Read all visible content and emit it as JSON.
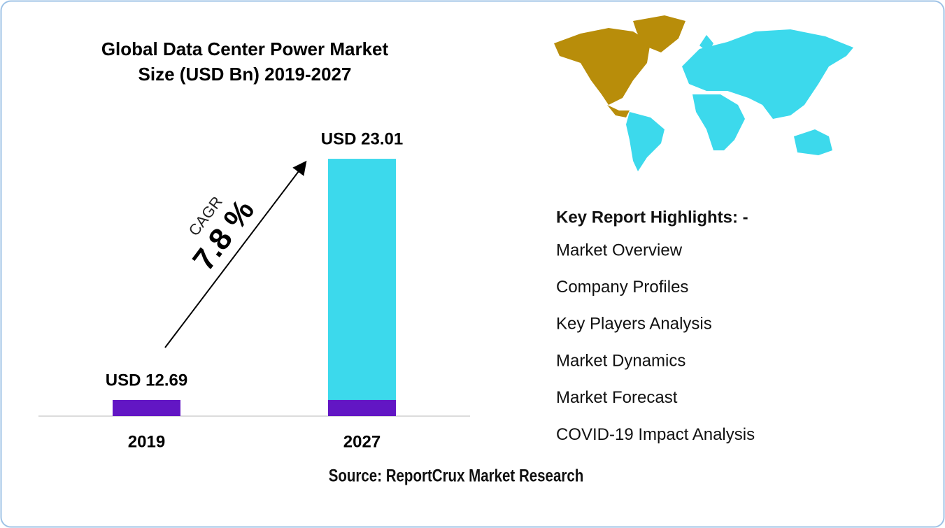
{
  "chart_data": {
    "type": "bar",
    "title": [
      "Global Data Center Power Market",
      "Size (USD Bn) 2019-2027"
    ],
    "categories": [
      "2019",
      "2027"
    ],
    "values": [
      12.69,
      23.01
    ],
    "value_labels": [
      "USD 12.69",
      "USD 23.01"
    ],
    "colors": [
      "#6216c4",
      "#3cd9ec"
    ],
    "ylim": [
      12,
      24
    ],
    "annotation": {
      "label": "CAGR",
      "value": "7.8 %"
    }
  },
  "highlights": {
    "title": "Key Report Highlights: -",
    "items": [
      "Market Overview",
      "Company Profiles",
      "Key Players Analysis",
      "Market Dynamics",
      "Market Forecast",
      "COVID-19 Impact Analysis"
    ]
  },
  "source": "Source: ReportCrux Market Research"
}
